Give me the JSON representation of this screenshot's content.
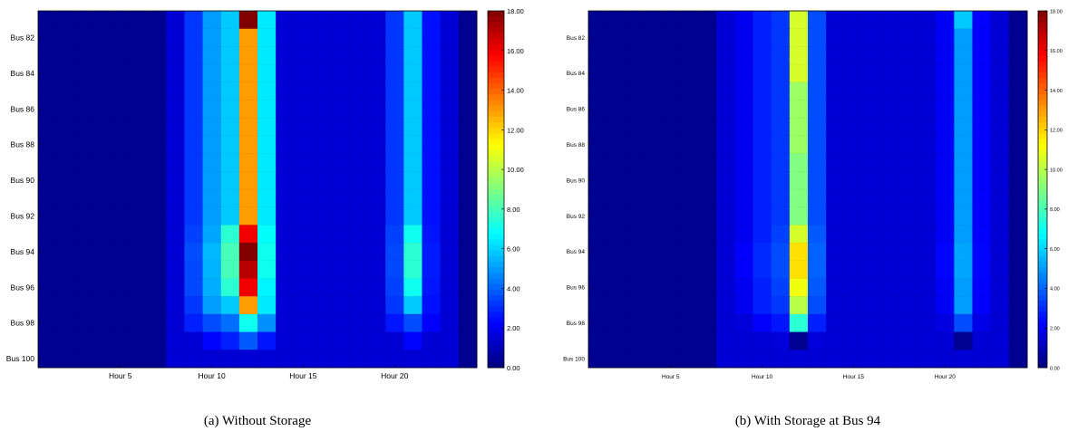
{
  "chart_data": [
    {
      "type": "heatmap",
      "caption": "(a) Without Storage",
      "x_tick_labels": [
        "Hour 5",
        "Hour 10",
        "Hour 15",
        "Hour 20"
      ],
      "y_tick_labels": [
        "Bus 82",
        "Bus 84",
        "Bus 86",
        "Bus 88",
        "Bus 90",
        "Bus 92",
        "Bus 94",
        "Bus 96",
        "Bus 98",
        "Bus 100"
      ],
      "colorbar_ticks": [
        "0.00",
        "2.00",
        "4.00",
        "6.00",
        "8.00",
        "10.00",
        "12.00",
        "14.00",
        "16.00",
        "18.00"
      ],
      "zlim": [
        0,
        18
      ],
      "hours": 24,
      "buses": [
        81,
        82,
        83,
        84,
        85,
        86,
        87,
        88,
        89,
        90,
        91,
        92,
        93,
        94,
        95,
        96,
        97,
        98,
        99,
        100
      ],
      "values": [
        [
          0.3,
          0.3,
          0.3,
          0.3,
          0.3,
          0.3,
          0.3,
          1.5,
          3.2,
          5.0,
          5.8,
          18.0,
          6.4,
          1.5,
          1.5,
          1.5,
          1.5,
          1.5,
          1.5,
          3.2,
          5.8,
          2.5,
          1.5,
          0.3
        ],
        [
          0.3,
          0.3,
          0.3,
          0.3,
          0.3,
          0.3,
          0.3,
          1.5,
          3.2,
          5.0,
          5.8,
          13.0,
          6.4,
          1.5,
          1.5,
          1.5,
          1.5,
          1.5,
          1.5,
          3.2,
          5.8,
          2.5,
          1.5,
          0.3
        ],
        [
          0.3,
          0.3,
          0.3,
          0.3,
          0.3,
          0.3,
          0.3,
          1.5,
          3.2,
          5.0,
          5.8,
          13.0,
          6.4,
          1.5,
          1.5,
          1.5,
          1.5,
          1.5,
          1.5,
          3.2,
          5.8,
          2.5,
          1.5,
          0.3
        ],
        [
          0.3,
          0.3,
          0.3,
          0.3,
          0.3,
          0.3,
          0.3,
          1.5,
          3.2,
          5.0,
          5.8,
          13.0,
          6.4,
          1.5,
          1.5,
          1.5,
          1.5,
          1.5,
          1.5,
          3.2,
          5.8,
          2.5,
          1.5,
          0.3
        ],
        [
          0.3,
          0.3,
          0.3,
          0.3,
          0.3,
          0.3,
          0.3,
          1.5,
          3.2,
          5.0,
          5.8,
          13.0,
          6.4,
          1.5,
          1.5,
          1.5,
          1.5,
          1.5,
          1.5,
          3.2,
          5.8,
          2.5,
          1.5,
          0.3
        ],
        [
          0.3,
          0.3,
          0.3,
          0.3,
          0.3,
          0.3,
          0.3,
          1.5,
          3.2,
          5.0,
          5.8,
          13.0,
          6.4,
          1.5,
          1.5,
          1.5,
          1.5,
          1.5,
          1.5,
          3.2,
          5.8,
          2.5,
          1.5,
          0.3
        ],
        [
          0.3,
          0.3,
          0.3,
          0.3,
          0.3,
          0.3,
          0.3,
          1.5,
          3.2,
          5.0,
          5.8,
          13.0,
          6.4,
          1.5,
          1.5,
          1.5,
          1.5,
          1.5,
          1.5,
          3.2,
          5.8,
          2.5,
          1.5,
          0.3
        ],
        [
          0.3,
          0.3,
          0.3,
          0.3,
          0.3,
          0.3,
          0.3,
          1.5,
          3.2,
          5.0,
          5.8,
          13.0,
          6.4,
          1.5,
          1.5,
          1.5,
          1.5,
          1.5,
          1.5,
          3.2,
          5.8,
          2.5,
          1.5,
          0.3
        ],
        [
          0.3,
          0.3,
          0.3,
          0.3,
          0.3,
          0.3,
          0.3,
          1.5,
          3.2,
          5.0,
          5.8,
          13.0,
          6.4,
          1.5,
          1.5,
          1.5,
          1.5,
          1.5,
          1.5,
          3.2,
          5.8,
          2.5,
          1.5,
          0.3
        ],
        [
          0.3,
          0.3,
          0.3,
          0.3,
          0.3,
          0.3,
          0.3,
          1.5,
          3.2,
          5.0,
          5.8,
          13.0,
          6.4,
          1.5,
          1.5,
          1.5,
          1.5,
          1.5,
          1.5,
          3.2,
          5.8,
          2.5,
          1.5,
          0.3
        ],
        [
          0.3,
          0.3,
          0.3,
          0.3,
          0.3,
          0.3,
          0.3,
          1.5,
          3.2,
          5.0,
          5.8,
          13.0,
          6.4,
          1.5,
          1.5,
          1.5,
          1.5,
          1.5,
          1.5,
          3.2,
          5.8,
          2.5,
          1.5,
          0.3
        ],
        [
          0.3,
          0.3,
          0.3,
          0.3,
          0.3,
          0.3,
          0.3,
          1.5,
          3.2,
          5.0,
          5.8,
          13.0,
          6.4,
          1.5,
          1.5,
          1.5,
          1.5,
          1.5,
          1.5,
          3.2,
          5.8,
          2.5,
          1.5,
          0.3
        ],
        [
          0.3,
          0.3,
          0.3,
          0.3,
          0.3,
          0.3,
          0.3,
          1.5,
          3.4,
          5.2,
          7.5,
          16.0,
          6.8,
          1.5,
          1.5,
          1.5,
          1.5,
          1.5,
          1.5,
          3.4,
          7.0,
          2.6,
          1.5,
          0.3
        ],
        [
          0.3,
          0.3,
          0.3,
          0.3,
          0.3,
          0.3,
          0.3,
          1.5,
          3.6,
          5.5,
          8.0,
          18.0,
          7.0,
          1.5,
          1.5,
          1.5,
          1.5,
          1.5,
          1.5,
          3.5,
          7.5,
          2.7,
          1.5,
          0.3
        ],
        [
          0.3,
          0.3,
          0.3,
          0.3,
          0.3,
          0.3,
          0.3,
          1.5,
          3.5,
          5.4,
          8.0,
          17.0,
          7.0,
          1.5,
          1.5,
          1.5,
          1.5,
          1.5,
          1.5,
          3.5,
          7.5,
          2.7,
          1.5,
          0.3
        ],
        [
          0.3,
          0.3,
          0.3,
          0.3,
          0.3,
          0.3,
          0.3,
          1.5,
          3.5,
          5.3,
          7.5,
          16.0,
          6.6,
          1.5,
          1.5,
          1.5,
          1.5,
          1.5,
          1.5,
          3.4,
          7.0,
          2.6,
          1.5,
          0.3
        ],
        [
          0.3,
          0.3,
          0.3,
          0.3,
          0.3,
          0.3,
          0.3,
          1.5,
          3.2,
          5.0,
          5.8,
          13.0,
          6.4,
          1.5,
          1.5,
          1.5,
          1.5,
          1.5,
          1.5,
          3.2,
          5.8,
          2.5,
          1.5,
          0.3
        ],
        [
          0.3,
          0.3,
          0.3,
          0.3,
          0.3,
          0.3,
          0.3,
          1.5,
          2.8,
          3.6,
          4.2,
          7.0,
          4.8,
          1.5,
          1.5,
          1.5,
          1.5,
          1.5,
          1.5,
          2.6,
          3.6,
          2.2,
          1.5,
          0.3
        ],
        [
          0.3,
          0.3,
          0.3,
          0.3,
          0.3,
          0.3,
          0.3,
          1.5,
          1.5,
          2.3,
          2.8,
          3.8,
          2.6,
          1.5,
          1.5,
          1.5,
          1.5,
          1.5,
          1.5,
          1.5,
          2.3,
          1.5,
          1.5,
          0.3
        ],
        [
          0.3,
          0.3,
          0.3,
          0.3,
          0.3,
          0.3,
          0.3,
          1.5,
          1.5,
          1.5,
          1.5,
          1.5,
          1.5,
          1.5,
          1.5,
          1.5,
          1.5,
          1.5,
          1.5,
          1.5,
          1.5,
          1.5,
          1.5,
          0.3
        ]
      ]
    },
    {
      "type": "heatmap",
      "caption": "(b) With Storage at Bus 94",
      "x_tick_labels": [
        "Hour 5",
        "Hour 10",
        "Hour 15",
        "Hour 20"
      ],
      "y_tick_labels": [
        "Bus 82",
        "Bus 84",
        "Bus 86",
        "Bus 88",
        "Bus 90",
        "Bus 92",
        "Bus 94",
        "Bus 96",
        "Bus 98",
        "Bus 100"
      ],
      "colorbar_ticks": [
        "0.00",
        "2.00",
        "4.00",
        "6.00",
        "8.00",
        "10.00",
        "12.00",
        "14.00",
        "16.00",
        "18.00"
      ],
      "zlim": [
        0,
        18
      ],
      "hours": 24,
      "buses": [
        81,
        82,
        83,
        84,
        85,
        86,
        87,
        88,
        89,
        90,
        91,
        92,
        93,
        94,
        95,
        96,
        97,
        98,
        99,
        100
      ],
      "values": [
        [
          0.3,
          0.3,
          0.3,
          0.3,
          0.3,
          0.3,
          0.3,
          1.5,
          2.0,
          2.8,
          3.2,
          10.5,
          3.6,
          1.5,
          1.5,
          1.5,
          1.5,
          1.5,
          1.5,
          2.1,
          5.8,
          2.2,
          1.5,
          0.3
        ],
        [
          0.3,
          0.3,
          0.3,
          0.3,
          0.3,
          0.3,
          0.3,
          1.5,
          2.0,
          2.8,
          3.2,
          10.5,
          3.6,
          1.5,
          1.5,
          1.5,
          1.5,
          1.5,
          1.5,
          2.1,
          5.0,
          2.2,
          1.5,
          0.3
        ],
        [
          0.3,
          0.3,
          0.3,
          0.3,
          0.3,
          0.3,
          0.3,
          1.5,
          2.0,
          2.8,
          3.2,
          10.5,
          3.6,
          1.5,
          1.5,
          1.5,
          1.5,
          1.5,
          1.5,
          2.1,
          5.0,
          2.2,
          1.5,
          0.3
        ],
        [
          0.3,
          0.3,
          0.3,
          0.3,
          0.3,
          0.3,
          0.3,
          1.5,
          2.0,
          2.8,
          3.2,
          10.5,
          3.6,
          1.5,
          1.5,
          1.5,
          1.5,
          1.5,
          1.5,
          2.1,
          5.0,
          2.2,
          1.5,
          0.3
        ],
        [
          0.3,
          0.3,
          0.3,
          0.3,
          0.3,
          0.3,
          0.3,
          1.5,
          2.0,
          2.8,
          3.2,
          9.5,
          3.6,
          1.5,
          1.5,
          1.5,
          1.5,
          1.5,
          1.5,
          2.1,
          5.0,
          2.2,
          1.5,
          0.3
        ],
        [
          0.3,
          0.3,
          0.3,
          0.3,
          0.3,
          0.3,
          0.3,
          1.5,
          2.0,
          2.8,
          3.2,
          9.5,
          3.6,
          1.5,
          1.5,
          1.5,
          1.5,
          1.5,
          1.5,
          2.1,
          5.0,
          2.2,
          1.5,
          0.3
        ],
        [
          0.3,
          0.3,
          0.3,
          0.3,
          0.3,
          0.3,
          0.3,
          1.5,
          2.0,
          2.8,
          3.2,
          9.5,
          3.6,
          1.5,
          1.5,
          1.5,
          1.5,
          1.5,
          1.5,
          2.1,
          5.0,
          2.2,
          1.5,
          0.3
        ],
        [
          0.3,
          0.3,
          0.3,
          0.3,
          0.3,
          0.3,
          0.3,
          1.5,
          2.0,
          2.8,
          3.2,
          9.5,
          3.6,
          1.5,
          1.5,
          1.5,
          1.5,
          1.5,
          1.5,
          2.1,
          5.0,
          2.2,
          1.5,
          0.3
        ],
        [
          0.3,
          0.3,
          0.3,
          0.3,
          0.3,
          0.3,
          0.3,
          1.5,
          2.0,
          2.8,
          3.2,
          9.0,
          3.6,
          1.5,
          1.5,
          1.5,
          1.5,
          1.5,
          1.5,
          2.1,
          5.0,
          2.2,
          1.5,
          0.3
        ],
        [
          0.3,
          0.3,
          0.3,
          0.3,
          0.3,
          0.3,
          0.3,
          1.5,
          2.0,
          2.8,
          3.2,
          9.0,
          3.6,
          1.5,
          1.5,
          1.5,
          1.5,
          1.5,
          1.5,
          2.1,
          5.0,
          2.2,
          1.5,
          0.3
        ],
        [
          0.3,
          0.3,
          0.3,
          0.3,
          0.3,
          0.3,
          0.3,
          1.5,
          2.0,
          2.8,
          3.2,
          9.0,
          3.6,
          1.5,
          1.5,
          1.5,
          1.5,
          1.5,
          1.5,
          2.1,
          5.0,
          2.2,
          1.5,
          0.3
        ],
        [
          0.3,
          0.3,
          0.3,
          0.3,
          0.3,
          0.3,
          0.3,
          1.5,
          2.0,
          2.8,
          3.2,
          9.0,
          3.6,
          1.5,
          1.5,
          1.5,
          1.5,
          1.5,
          1.5,
          2.1,
          5.0,
          2.2,
          1.5,
          0.3
        ],
        [
          0.3,
          0.3,
          0.3,
          0.3,
          0.3,
          0.3,
          0.3,
          1.5,
          2.0,
          2.8,
          3.4,
          10.5,
          3.8,
          1.5,
          1.5,
          1.5,
          1.5,
          1.5,
          1.5,
          2.1,
          5.0,
          2.2,
          1.5,
          0.3
        ],
        [
          0.3,
          0.3,
          0.3,
          0.3,
          0.3,
          0.3,
          0.3,
          1.5,
          2.2,
          3.0,
          3.6,
          11.8,
          4.0,
          1.5,
          1.5,
          1.5,
          1.5,
          1.5,
          1.5,
          2.3,
          5.2,
          2.3,
          1.5,
          0.3
        ],
        [
          0.3,
          0.3,
          0.3,
          0.3,
          0.3,
          0.3,
          0.3,
          1.5,
          2.2,
          3.0,
          3.6,
          11.8,
          4.0,
          1.5,
          1.5,
          1.5,
          1.5,
          1.5,
          1.5,
          2.3,
          5.2,
          2.3,
          1.5,
          0.3
        ],
        [
          0.3,
          0.3,
          0.3,
          0.3,
          0.3,
          0.3,
          0.3,
          1.5,
          2.0,
          2.8,
          3.4,
          11.0,
          3.8,
          1.5,
          1.5,
          1.5,
          1.5,
          1.5,
          1.5,
          2.1,
          5.0,
          2.2,
          1.5,
          0.3
        ],
        [
          0.3,
          0.3,
          0.3,
          0.3,
          0.3,
          0.3,
          0.3,
          1.5,
          2.0,
          2.8,
          3.2,
          10.0,
          3.6,
          1.5,
          1.5,
          1.5,
          1.5,
          1.5,
          1.5,
          2.1,
          5.0,
          2.2,
          1.5,
          0.3
        ],
        [
          0.3,
          0.3,
          0.3,
          0.3,
          0.3,
          0.3,
          0.3,
          1.5,
          1.6,
          2.2,
          2.6,
          7.5,
          2.8,
          1.5,
          1.5,
          1.5,
          1.5,
          1.5,
          1.5,
          1.7,
          3.6,
          1.8,
          1.5,
          0.3
        ],
        [
          0.3,
          0.3,
          0.3,
          0.3,
          0.3,
          0.3,
          0.3,
          1.5,
          1.5,
          1.5,
          1.6,
          0.3,
          1.6,
          1.5,
          1.5,
          1.5,
          1.5,
          1.5,
          1.5,
          1.5,
          0.3,
          1.5,
          1.5,
          0.3
        ],
        [
          0.3,
          0.3,
          0.3,
          0.3,
          0.3,
          0.3,
          0.3,
          1.5,
          1.5,
          1.5,
          1.5,
          1.5,
          1.5,
          1.5,
          1.5,
          1.5,
          1.5,
          1.5,
          1.5,
          1.5,
          1.5,
          1.5,
          1.5,
          0.3
        ]
      ]
    }
  ]
}
